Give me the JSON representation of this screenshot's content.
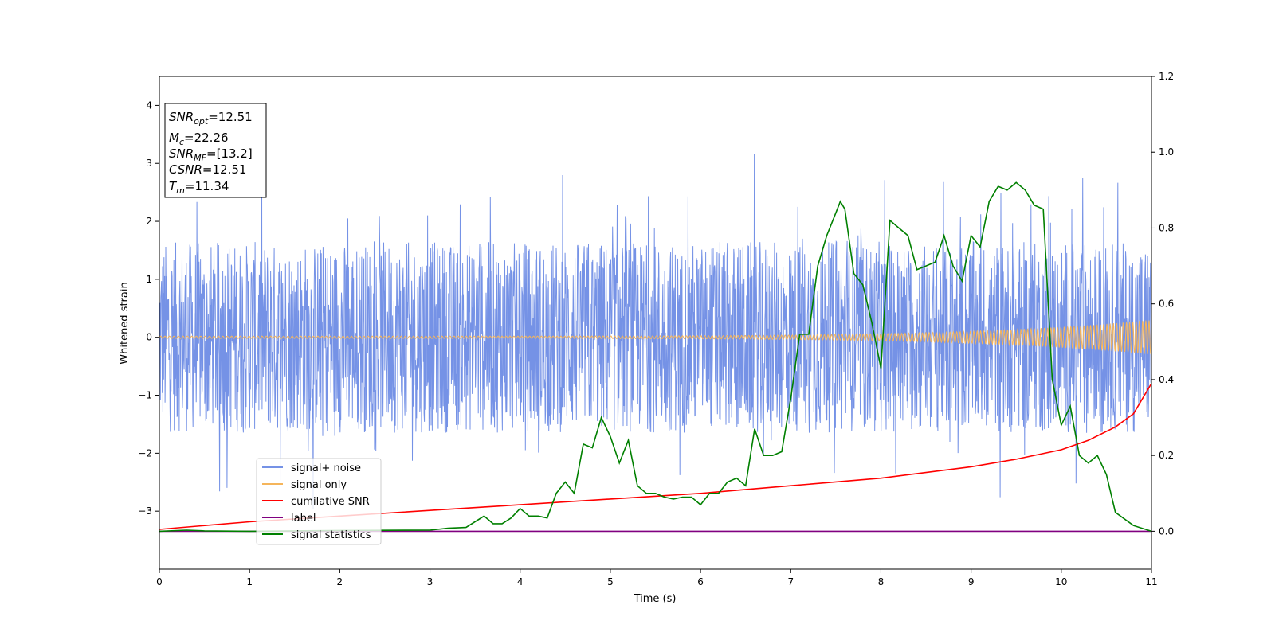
{
  "chart_data": {
    "type": "line",
    "xlabel": "Time (s)",
    "ylabel": "Whitened strain",
    "xlim": [
      0,
      11
    ],
    "ylim": [
      -4,
      4.5
    ],
    "y2lim": [
      -0.1,
      1.2
    ],
    "x_ticks": [
      "0",
      "1",
      "2",
      "3",
      "4",
      "5",
      "6",
      "7",
      "8",
      "9",
      "10",
      "11"
    ],
    "y_ticks": [
      "4",
      "3",
      "2",
      "1",
      "0",
      "−1",
      "−2",
      "−3"
    ],
    "y2_ticks": [
      "1.2",
      "1.0",
      "0.8",
      "0.6",
      "0.4",
      "0.2",
      "0.0"
    ],
    "grid": false,
    "legend_position": "lower-left",
    "annotation": {
      "lines": [
        {
          "sym": "SNR",
          "sub": "opt",
          "value": "=12.51"
        },
        {
          "sym": "M",
          "sub": "c",
          "value": "=22.26"
        },
        {
          "sym": "SNR",
          "sub": "MF",
          "value": "=[13.2]"
        },
        {
          "sym": "CSNR",
          "sub": "",
          "value": "=12.51"
        },
        {
          "sym": "T",
          "sub": "m",
          "value": "=11.34"
        }
      ]
    },
    "series": [
      {
        "name": "signal+ noise",
        "color": "#7592e6",
        "axis": "left",
        "kind": "noise",
        "envelope_typical": 1.1,
        "envelope_extreme": 3.2
      },
      {
        "name": "signal only",
        "color": "#f5b55b",
        "axis": "left",
        "kind": "chirp",
        "amplitude_start": 0.02,
        "amplitude_end": 0.3
      },
      {
        "name": "cumilative SNR",
        "color": "#ff0000",
        "axis": "right",
        "x": [
          0,
          1,
          2,
          3,
          4,
          5,
          6,
          7,
          8,
          9,
          9.5,
          10,
          10.3,
          10.6,
          10.8,
          11
        ],
        "y": [
          0.005,
          0.025,
          0.04,
          0.055,
          0.07,
          0.085,
          0.1,
          0.12,
          0.14,
          0.17,
          0.19,
          0.215,
          0.24,
          0.275,
          0.31,
          0.39
        ]
      },
      {
        "name": "label",
        "color": "#800080",
        "axis": "right",
        "x": [
          0,
          11
        ],
        "y": [
          0,
          0
        ]
      },
      {
        "name": "signal statistics",
        "color": "#008000",
        "axis": "right",
        "x": [
          0,
          0.3,
          0.5,
          1,
          2,
          3,
          3.2,
          3.4,
          3.6,
          3.7,
          3.8,
          3.9,
          4.0,
          4.1,
          4.2,
          4.3,
          4.4,
          4.5,
          4.6,
          4.7,
          4.8,
          4.9,
          5.0,
          5.1,
          5.2,
          5.3,
          5.4,
          5.5,
          5.6,
          5.7,
          5.8,
          5.9,
          6.0,
          6.1,
          6.2,
          6.3,
          6.4,
          6.5,
          6.6,
          6.7,
          6.8,
          6.9,
          7.0,
          7.1,
          7.2,
          7.3,
          7.4,
          7.5,
          7.55,
          7.6,
          7.7,
          7.8,
          7.9,
          8.0,
          8.1,
          8.2,
          8.3,
          8.4,
          8.5,
          8.6,
          8.7,
          8.8,
          8.9,
          9.0,
          9.1,
          9.2,
          9.3,
          9.4,
          9.5,
          9.6,
          9.7,
          9.8,
          9.9,
          10.0,
          10.1,
          10.2,
          10.3,
          10.4,
          10.5,
          10.6,
          10.8,
          11
        ],
        "y": [
          0,
          0.003,
          0.001,
          0,
          0.002,
          0.003,
          0.008,
          0.01,
          0.04,
          0.02,
          0.02,
          0.035,
          0.06,
          0.04,
          0.04,
          0.035,
          0.1,
          0.13,
          0.1,
          0.23,
          0.22,
          0.3,
          0.25,
          0.18,
          0.24,
          0.12,
          0.1,
          0.1,
          0.09,
          0.085,
          0.09,
          0.09,
          0.07,
          0.1,
          0.1,
          0.13,
          0.14,
          0.12,
          0.27,
          0.2,
          0.2,
          0.21,
          0.35,
          0.52,
          0.52,
          0.7,
          0.78,
          0.84,
          0.87,
          0.85,
          0.68,
          0.65,
          0.55,
          0.43,
          0.82,
          0.8,
          0.78,
          0.69,
          0.7,
          0.71,
          0.78,
          0.7,
          0.66,
          0.78,
          0.75,
          0.87,
          0.91,
          0.9,
          0.92,
          0.9,
          0.86,
          0.85,
          0.4,
          0.28,
          0.33,
          0.2,
          0.18,
          0.2,
          0.15,
          0.05,
          0.015,
          0
        ]
      }
    ]
  }
}
